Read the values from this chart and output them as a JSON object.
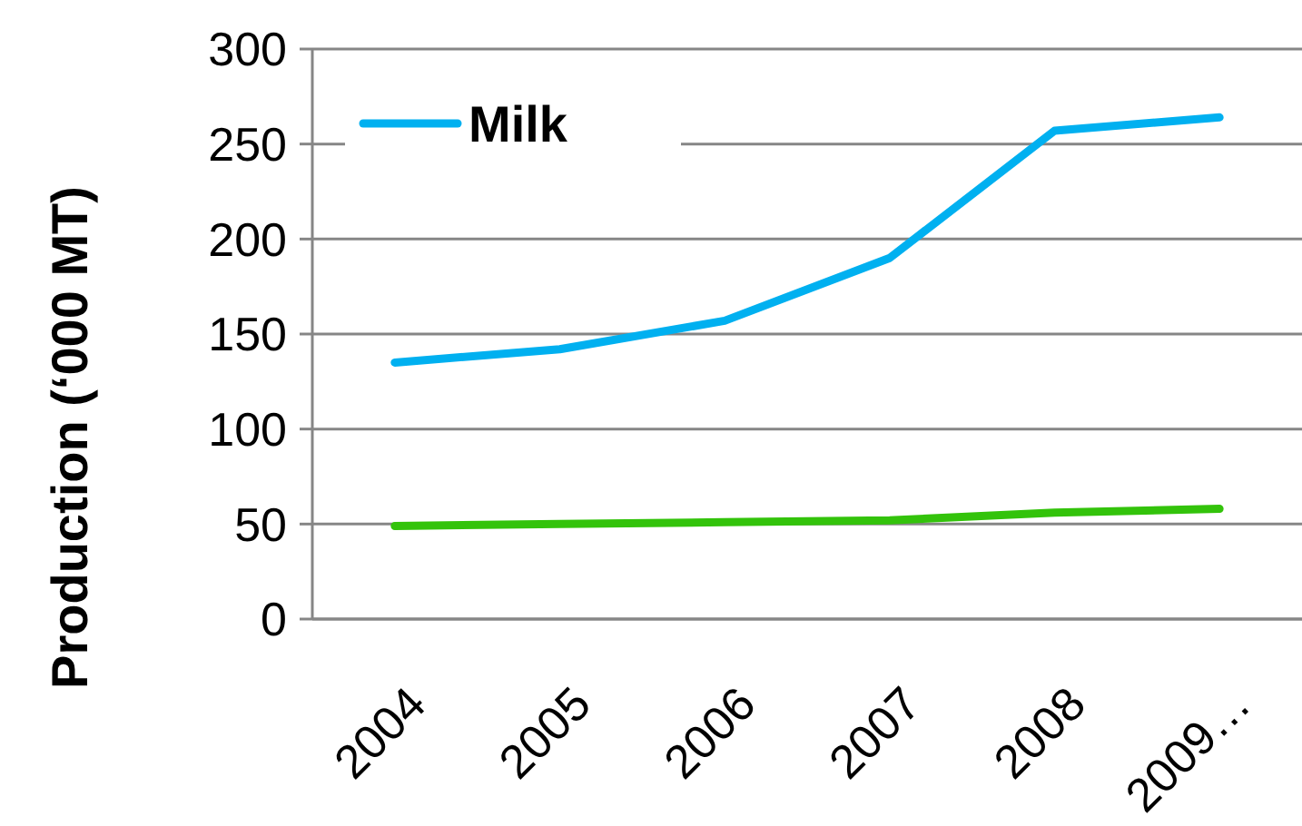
{
  "chart_data": {
    "type": "line",
    "ylabel": "Production (‘000 MT)",
    "categories": [
      "2004",
      "2005",
      "2006",
      "2007",
      "2008",
      "2009…"
    ],
    "series": [
      {
        "name": "Milk",
        "color": "#00b0f0",
        "values": [
          135,
          142,
          157,
          190,
          257,
          264
        ]
      },
      {
        "color": "#33c30b",
        "values": [
          49,
          50,
          51,
          52,
          56,
          58
        ]
      }
    ],
    "ylim": [
      0,
      300
    ],
    "yticks": [
      0,
      50,
      100,
      150,
      200,
      250,
      300
    ],
    "grid": "y",
    "legend": "top left",
    "marker": "none",
    "line_style": "solid"
  }
}
